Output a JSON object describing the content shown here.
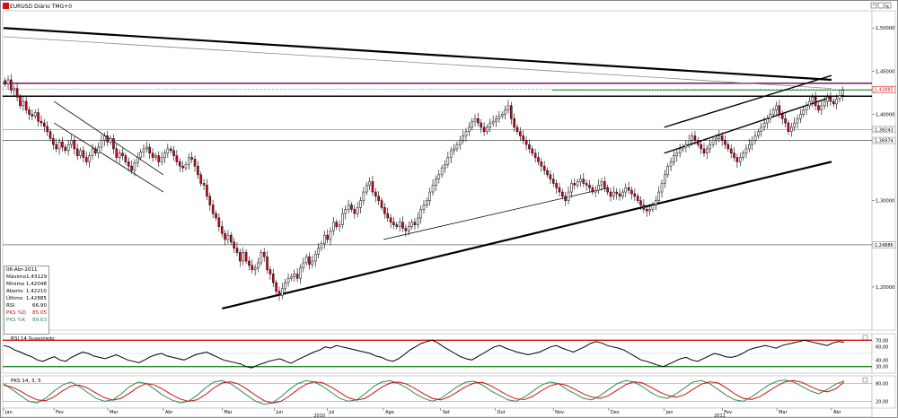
{
  "window": {
    "title": "EURUSD Diário TMG+0",
    "controls": [
      "^",
      "□",
      "x"
    ]
  },
  "colors": {
    "bull": "#ffffff",
    "bear": "#e0001b",
    "trendline": "#000000",
    "resistance": "#7b2a6a",
    "pink": "#c888a8",
    "green": "#1f8a2a",
    "stoch_k": "#2e8b57",
    "stoch_d": "#d01010",
    "last_price_bg": "#ffffff"
  },
  "infobox": {
    "date": "06-Abr-2011",
    "rows": [
      {
        "label": "Máximo",
        "value": "1,43129",
        "color": "#000000"
      },
      {
        "label": "Mínimo",
        "value": "1,42048",
        "color": "#000000"
      },
      {
        "label": "Aberto",
        "value": "1,42210",
        "color": "#000000"
      },
      {
        "label": "Último",
        "value": "1,42885",
        "color": "#000000"
      },
      {
        "label": "RSI",
        "value": "66,90",
        "color": "#000000"
      },
      {
        "label": "PKS %D",
        "value": "85,05",
        "color": "#d01010"
      },
      {
        "label": "PKS %K",
        "value": "89,63",
        "color": "#2e8b57"
      }
    ]
  },
  "chart_data": [
    {
      "type": "candlestick",
      "instrument": "EURUSD",
      "title": "EURUSD Diário TMG+0",
      "ylim": [
        1.15,
        1.52
      ],
      "y_ticks": [
        "1,50000",
        "1,45000",
        "1,40000",
        "1,30000",
        "1,20000"
      ],
      "price_labels": [
        {
          "value": 1.42885,
          "label": "1,42885",
          "kind": "last"
        },
        {
          "value": 1.38243,
          "label": "1,38243",
          "kind": "level"
        },
        {
          "value": 1.36974,
          "label": "1,36974",
          "kind": "level"
        },
        {
          "value": 1.24886,
          "label": "1,24886",
          "kind": "level"
        }
      ],
      "x_month_labels": [
        "Jan",
        "Fev",
        "Mar",
        "Abr",
        "Mai",
        "Jun",
        "Jul",
        "Ago",
        "Set",
        "Out",
        "Nov",
        "Dez",
        "Jan",
        "Fev",
        "Mar",
        "Abr"
      ],
      "x_year_labels": [
        "2010",
        "2011"
      ],
      "closes": [
        1.435,
        1.44,
        1.428,
        1.43,
        1.42,
        1.41,
        1.415,
        1.405,
        1.4,
        1.398,
        1.402,
        1.392,
        1.39,
        1.386,
        1.38,
        1.372,
        1.365,
        1.36,
        1.368,
        1.362,
        1.358,
        1.365,
        1.37,
        1.36,
        1.352,
        1.358,
        1.35,
        1.345,
        1.352,
        1.36,
        1.355,
        1.362,
        1.37,
        1.375,
        1.368,
        1.372,
        1.36,
        1.35,
        1.355,
        1.352,
        1.345,
        1.34,
        1.335,
        1.344,
        1.35,
        1.356,
        1.36,
        1.362,
        1.355,
        1.35,
        1.352,
        1.345,
        1.35,
        1.355,
        1.36,
        1.358,
        1.352,
        1.345,
        1.34,
        1.338,
        1.342,
        1.35,
        1.348,
        1.34,
        1.33,
        1.32,
        1.318,
        1.305,
        1.295,
        1.285,
        1.28,
        1.27,
        1.262,
        1.255,
        1.26,
        1.252,
        1.245,
        1.24,
        1.23,
        1.24,
        1.23,
        1.225,
        1.22,
        1.222,
        1.228,
        1.24,
        1.235,
        1.22,
        1.215,
        1.205,
        1.195,
        1.19,
        1.198,
        1.205,
        1.21,
        1.212,
        1.215,
        1.21,
        1.222,
        1.228,
        1.235,
        1.226,
        1.23,
        1.238,
        1.245,
        1.25,
        1.26,
        1.255,
        1.265,
        1.275,
        1.27,
        1.272,
        1.285,
        1.29,
        1.295,
        1.29,
        1.285,
        1.292,
        1.3,
        1.31,
        1.318,
        1.322,
        1.31,
        1.305,
        1.3,
        1.292,
        1.285,
        1.28,
        1.275,
        1.272,
        1.27,
        1.275,
        1.268,
        1.265,
        1.27,
        1.275,
        1.272,
        1.28,
        1.29,
        1.295,
        1.3,
        1.31,
        1.318,
        1.325,
        1.33,
        1.338,
        1.342,
        1.35,
        1.358,
        1.36,
        1.365,
        1.37,
        1.375,
        1.38,
        1.385,
        1.392,
        1.395,
        1.39,
        1.385,
        1.38,
        1.385,
        1.39,
        1.392,
        1.395,
        1.398,
        1.4,
        1.405,
        1.41,
        1.395,
        1.385,
        1.38,
        1.375,
        1.37,
        1.365,
        1.36,
        1.355,
        1.35,
        1.345,
        1.34,
        1.335,
        1.33,
        1.325,
        1.32,
        1.315,
        1.31,
        1.305,
        1.3,
        1.31,
        1.32,
        1.318,
        1.322,
        1.325,
        1.32,
        1.318,
        1.315,
        1.31,
        1.312,
        1.318,
        1.322,
        1.315,
        1.31,
        1.305,
        1.31,
        1.308,
        1.305,
        1.31,
        1.315,
        1.312,
        1.308,
        1.305,
        1.3,
        1.295,
        1.29,
        1.288,
        1.29,
        1.295,
        1.3,
        1.31,
        1.32,
        1.33,
        1.34,
        1.345,
        1.352,
        1.355,
        1.36,
        1.362,
        1.365,
        1.37,
        1.375,
        1.37,
        1.365,
        1.36,
        1.355,
        1.36,
        1.365,
        1.37,
        1.372,
        1.375,
        1.37,
        1.365,
        1.36,
        1.355,
        1.35,
        1.345,
        1.35,
        1.355,
        1.36,
        1.365,
        1.37,
        1.375,
        1.38,
        1.385,
        1.39,
        1.395,
        1.4,
        1.405,
        1.41,
        1.4,
        1.395,
        1.39,
        1.38,
        1.385,
        1.39,
        1.395,
        1.4,
        1.405,
        1.41,
        1.415,
        1.42,
        1.41,
        1.405,
        1.41,
        1.415,
        1.42,
        1.415,
        1.412,
        1.418,
        1.422,
        1.428
      ],
      "trendlines": [
        {
          "from": [
            "2010-Jan",
            1.5
          ],
          "to": [
            "2011-Abr",
            1.44
          ],
          "style": "thick"
        },
        {
          "from": [
            "2010-Jan",
            1.49
          ],
          "to": [
            "2011-Abr",
            1.43
          ],
          "style": "thin-gray"
        },
        {
          "from": [
            "2010-Mai",
            1.175
          ],
          "to": [
            "2011-Abr",
            1.345
          ],
          "style": "thick"
        },
        {
          "from": [
            "2010-Fev",
            1.415
          ],
          "to": [
            "2010-Abr",
            1.33
          ],
          "style": "thin"
        },
        {
          "from": [
            "2010-Fev",
            1.39
          ],
          "to": [
            "2010-Abr",
            1.31
          ],
          "style": "thin"
        },
        {
          "from": [
            "2010-Ago",
            1.255
          ],
          "to": [
            "2010-Dez",
            1.315
          ],
          "style": "thin"
        },
        {
          "from": [
            "2011-Jan",
            1.355
          ],
          "to": [
            "2011-Abr",
            1.42
          ],
          "style": "channel-lower"
        },
        {
          "from": [
            "2011-Jan",
            1.385
          ],
          "to": [
            "2011-Abr",
            1.445
          ],
          "style": "channel-upper"
        }
      ],
      "horizontal_lines": [
        {
          "value": 1.436,
          "color": "resistance"
        },
        {
          "value": 1.421,
          "color": "black-thick"
        },
        {
          "value": 1.38243,
          "color": "pink"
        },
        {
          "value": 1.36974,
          "color": "gray"
        },
        {
          "value": 1.24886,
          "color": "gray"
        }
      ]
    },
    {
      "type": "line",
      "title": "RSI 14 Suavizado",
      "ylim": [
        20,
        80
      ],
      "y_ticks": [
        "70,00",
        "60,00",
        "40,00",
        "30,00"
      ],
      "levels": [
        70,
        30
      ],
      "last_value": 66.9,
      "values": [
        62,
        60,
        55,
        52,
        48,
        45,
        40,
        38,
        42,
        45,
        40,
        38,
        44,
        48,
        52,
        50,
        46,
        44,
        42,
        45,
        48,
        44,
        40,
        38,
        36,
        40,
        45,
        48,
        50,
        46,
        44,
        42,
        40,
        44,
        48,
        50,
        52,
        48,
        44,
        40,
        38,
        36,
        34,
        30,
        28,
        32,
        35,
        38,
        40,
        42,
        38,
        35,
        40,
        44,
        48,
        52,
        55,
        60,
        58,
        62,
        60,
        58,
        56,
        54,
        52,
        50,
        46,
        44,
        40,
        38,
        42,
        48,
        55,
        60,
        65,
        68,
        70,
        66,
        60,
        55,
        50,
        45,
        42,
        40,
        45,
        50,
        55,
        60,
        62,
        58,
        55,
        52,
        50,
        48,
        50,
        52,
        56,
        60,
        62,
        58,
        55,
        52,
        56,
        60,
        65,
        68,
        66,
        62,
        60,
        58,
        55,
        50,
        45,
        40,
        38,
        35,
        32,
        30,
        34,
        38,
        42,
        44,
        40,
        38,
        42,
        46,
        50,
        48,
        45,
        44,
        46,
        50,
        55,
        58,
        60,
        62,
        60,
        58,
        62,
        64,
        66,
        68,
        70,
        68,
        66,
        64,
        62,
        66,
        68,
        67
      ]
    },
    {
      "type": "line",
      "title": "PKS 14, 3, 5",
      "ylim": [
        0,
        100
      ],
      "y_ticks": [
        "80,00",
        "20,00"
      ],
      "levels": [
        80,
        20
      ],
      "series": [
        {
          "name": "PKS %K",
          "values": [
            80,
            60,
            40,
            20,
            15,
            30,
            55,
            75,
            85,
            70,
            50,
            30,
            20,
            25,
            45,
            70,
            85,
            80,
            60,
            40,
            25,
            15,
            20,
            40,
            65,
            85,
            90,
            80,
            60,
            40,
            20,
            10,
            15,
            35,
            60,
            80,
            90,
            85,
            70,
            50,
            30,
            20,
            25,
            45,
            70,
            85,
            90,
            80,
            65,
            45,
            30,
            20,
            30,
            50,
            70,
            85,
            88,
            75,
            55,
            40,
            25,
            20,
            35,
            55,
            75,
            85,
            80,
            60,
            45,
            30,
            25,
            40,
            60,
            80,
            90,
            85,
            70,
            50,
            35,
            30,
            45,
            65,
            85,
            90,
            80,
            60,
            40,
            25,
            20,
            35,
            55,
            75,
            88,
            92,
            85,
            70,
            55,
            45,
            60,
            78,
            89
          ]
        },
        {
          "name": "PKS %D",
          "values": [
            75,
            68,
            55,
            38,
            25,
            22,
            35,
            55,
            72,
            75,
            65,
            48,
            32,
            24,
            30,
            48,
            68,
            80,
            75,
            60,
            42,
            28,
            20,
            25,
            42,
            65,
            82,
            86,
            78,
            60,
            40,
            22,
            14,
            20,
            38,
            60,
            78,
            86,
            82,
            68,
            50,
            32,
            24,
            30,
            48,
            68,
            82,
            85,
            78,
            62,
            45,
            30,
            25,
            35,
            52,
            70,
            82,
            84,
            72,
            56,
            40,
            28,
            26,
            38,
            56,
            72,
            80,
            74,
            60,
            45,
            34,
            30,
            40,
            58,
            76,
            86,
            82,
            68,
            52,
            40,
            34,
            42,
            60,
            78,
            86,
            82,
            65,
            45,
            30,
            26,
            36,
            54,
            72,
            86,
            90,
            84,
            70,
            58,
            52,
            62,
            85
          ]
        }
      ]
    }
  ]
}
